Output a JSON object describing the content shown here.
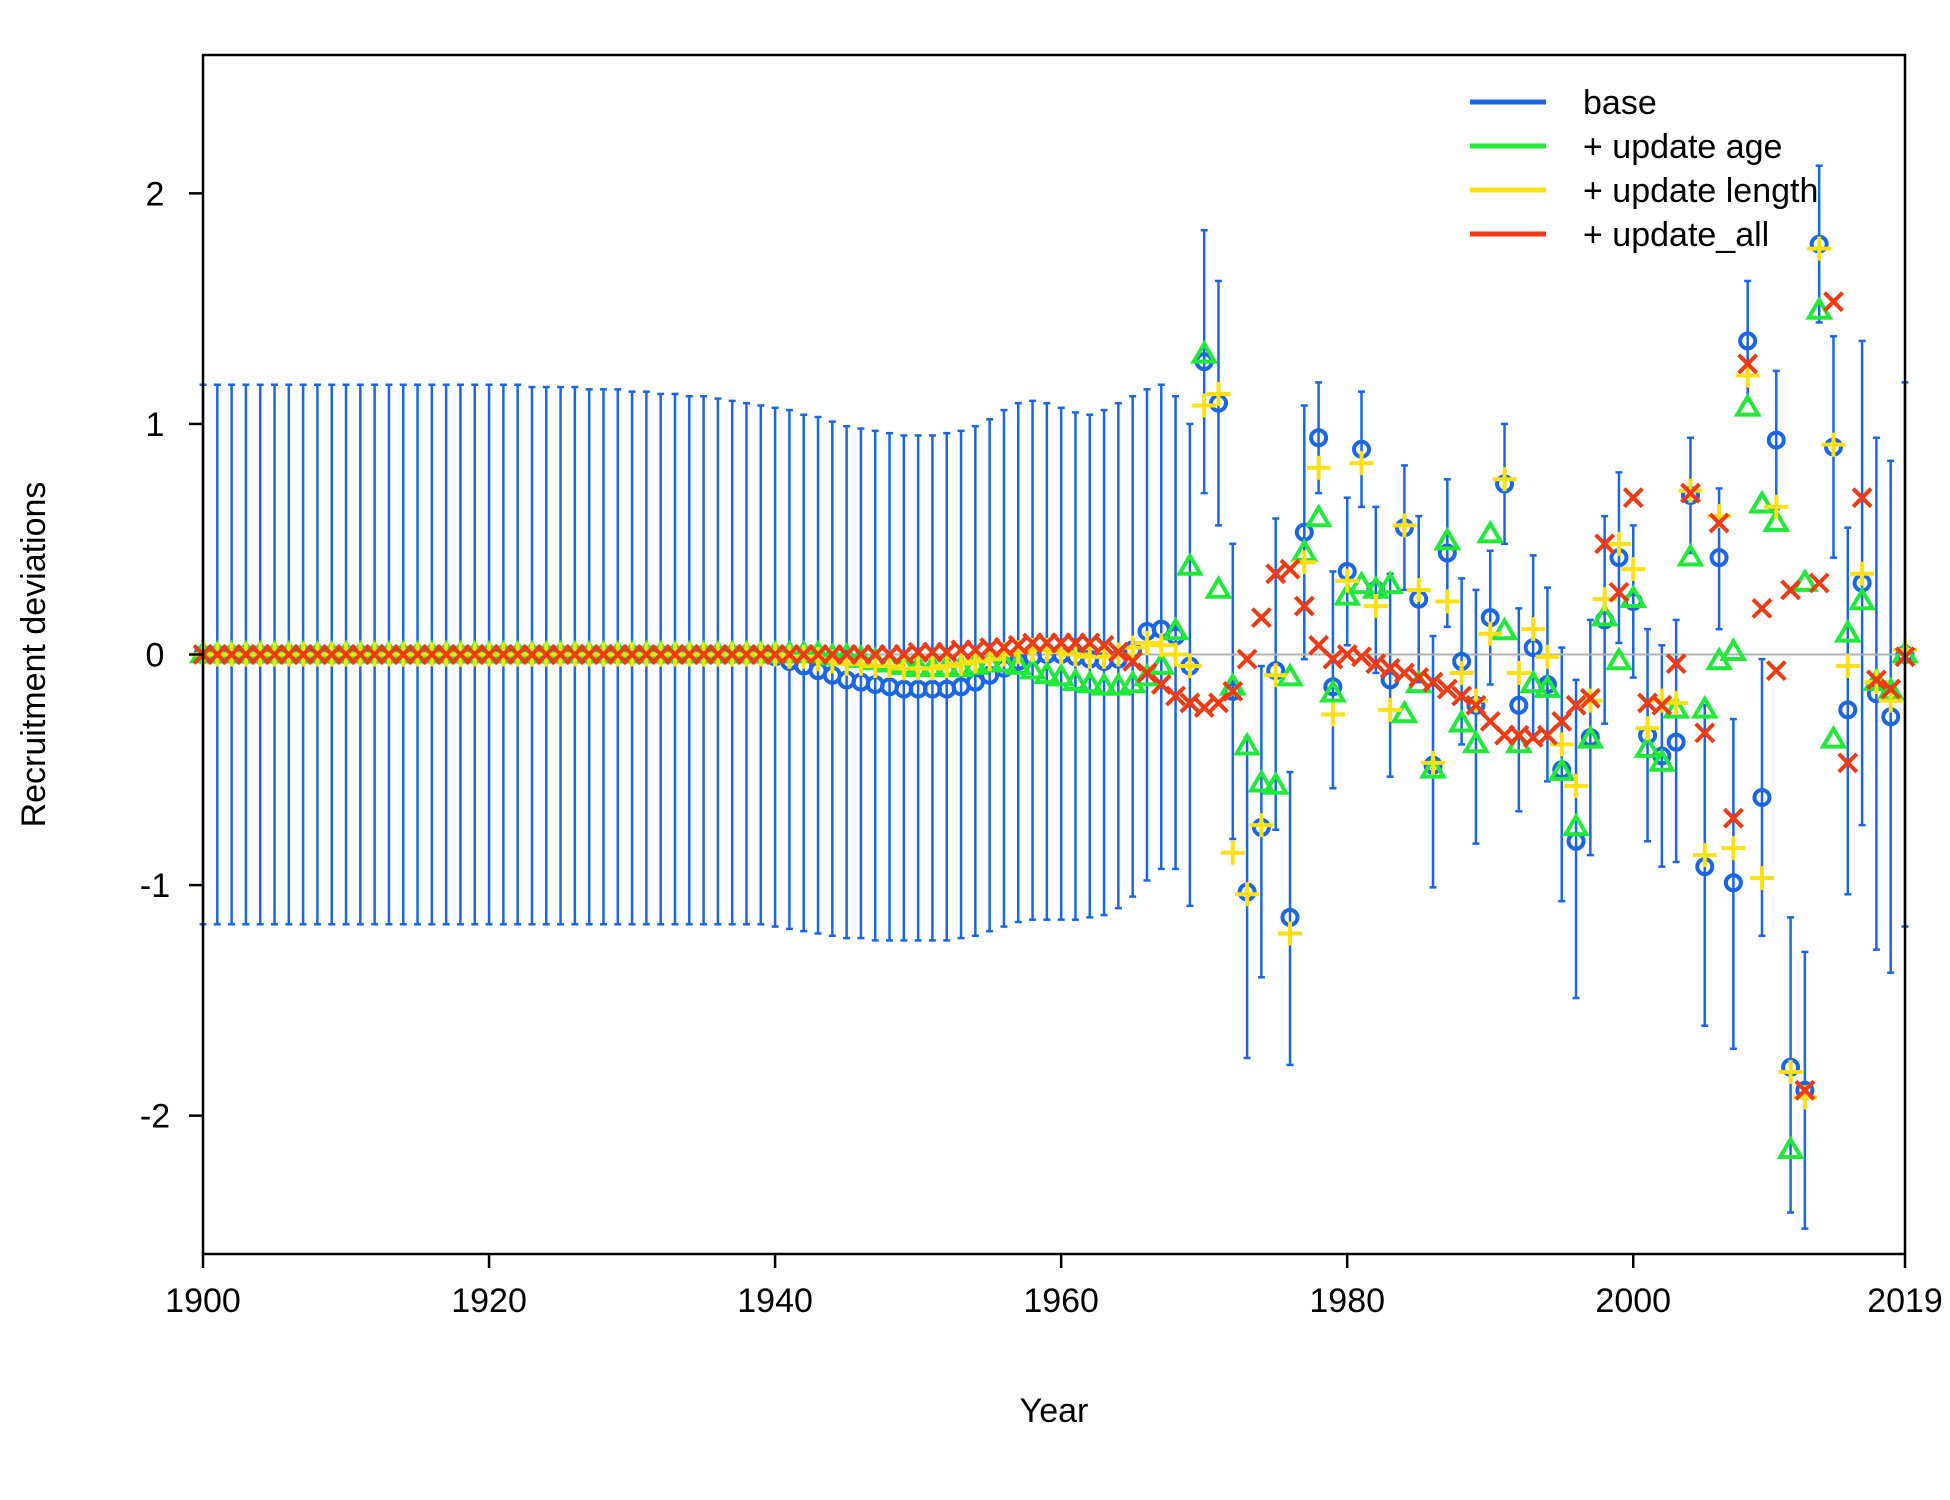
{
  "chart_data": {
    "type": "scatter",
    "title": "",
    "xlabel": "Year",
    "ylabel": "Recruitment deviations",
    "xlim": [
      1900,
      2019
    ],
    "ylim": [
      -2.6,
      2.6
    ],
    "x_ticks": [
      1900,
      1920,
      1940,
      1960,
      1980,
      2000,
      2019
    ],
    "y_ticks": [
      -2,
      -1,
      0,
      1,
      2
    ],
    "reference_line": 0,
    "grid": false,
    "legend": {
      "position": "top-right"
    },
    "early_years": {
      "start": 1900,
      "end": 1969
    },
    "main_years": {
      "start": 1970,
      "end": 2019
    },
    "series": [
      {
        "name": "base",
        "color": "#1a66e6",
        "marker": "circle",
        "early_values": [
          0,
          0,
          0,
          0,
          0,
          0,
          0,
          0,
          0,
          0,
          0,
          0,
          0,
          0,
          0,
          0,
          0,
          0,
          0,
          0,
          0,
          0,
          0,
          0,
          0,
          0,
          0,
          0,
          0,
          0,
          0,
          0,
          0,
          0,
          0,
          0,
          0,
          0,
          0,
          0,
          -0.01,
          -0.03,
          -0.05,
          -0.07,
          -0.09,
          -0.11,
          -0.12,
          -0.13,
          -0.14,
          -0.15,
          -0.15,
          -0.15,
          -0.15,
          -0.14,
          -0.12,
          -0.09,
          -0.06,
          -0.03,
          -0.01,
          0,
          0,
          -0.01,
          -0.02,
          -0.03,
          -0.02,
          0.02,
          0.1,
          0.11,
          0.08,
          -0.05
        ],
        "early_upper": [
          1.17,
          1.17,
          1.17,
          1.17,
          1.17,
          1.17,
          1.17,
          1.17,
          1.17,
          1.17,
          1.17,
          1.17,
          1.17,
          1.17,
          1.17,
          1.17,
          1.17,
          1.17,
          1.17,
          1.17,
          1.17,
          1.17,
          1.17,
          1.16,
          1.16,
          1.16,
          1.16,
          1.15,
          1.15,
          1.15,
          1.14,
          1.14,
          1.13,
          1.13,
          1.12,
          1.12,
          1.11,
          1.1,
          1.09,
          1.08,
          1.07,
          1.06,
          1.04,
          1.03,
          1.01,
          0.99,
          0.98,
          0.97,
          0.96,
          0.95,
          0.95,
          0.95,
          0.96,
          0.97,
          0.99,
          1.02,
          1.06,
          1.09,
          1.1,
          1.09,
          1.07,
          1.05,
          1.04,
          1.06,
          1.09,
          1.12,
          1.15,
          1.17,
          1.12,
          1.0
        ],
        "early_lower": [
          -1.17,
          -1.17,
          -1.17,
          -1.17,
          -1.17,
          -1.17,
          -1.17,
          -1.17,
          -1.17,
          -1.17,
          -1.17,
          -1.17,
          -1.17,
          -1.17,
          -1.17,
          -1.17,
          -1.17,
          -1.17,
          -1.17,
          -1.17,
          -1.17,
          -1.17,
          -1.17,
          -1.17,
          -1.17,
          -1.17,
          -1.17,
          -1.17,
          -1.17,
          -1.17,
          -1.17,
          -1.17,
          -1.17,
          -1.17,
          -1.17,
          -1.17,
          -1.17,
          -1.17,
          -1.17,
          -1.17,
          -1.18,
          -1.19,
          -1.2,
          -1.21,
          -1.22,
          -1.23,
          -1.23,
          -1.24,
          -1.24,
          -1.24,
          -1.24,
          -1.24,
          -1.24,
          -1.23,
          -1.22,
          -1.2,
          -1.18,
          -1.16,
          -1.15,
          -1.15,
          -1.15,
          -1.15,
          -1.14,
          -1.13,
          -1.1,
          -1.05,
          -0.98,
          -0.93,
          -0.93,
          -1.09
        ],
        "values": [
          1.27,
          1.09,
          -0.16,
          -1.03,
          -0.75,
          -0.07,
          -1.14,
          0.53,
          0.94,
          -0.14,
          0.36,
          0.89,
          0.28,
          -0.11,
          0.55,
          0.24,
          -0.48,
          0.44,
          -0.03,
          -0.22,
          0.16,
          0.74,
          -0.22,
          0.03,
          -0.13,
          -0.5,
          -0.81,
          -0.36,
          0.15,
          0.42,
          0.23,
          -0.35,
          -0.44,
          -0.38,
          0.69,
          -0.92,
          0.42,
          -0.99,
          1.36,
          -0.62,
          0.93,
          -1.79,
          -1.89,
          1.78,
          0.9,
          -0.24,
          0.31,
          -0.17,
          -0.27,
          0
        ],
        "upper": [
          1.84,
          1.62,
          0.48,
          -0.36,
          -0.05,
          0.59,
          -0.51,
          1.08,
          1.18,
          0.36,
          0.68,
          1.14,
          0.64,
          0.35,
          0.82,
          0.6,
          0.08,
          0.76,
          0.33,
          0.28,
          0.45,
          1.0,
          0.2,
          0.43,
          0.29,
          0.03,
          -0.11,
          0.15,
          0.6,
          0.79,
          0.56,
          0.11,
          0.04,
          0.15,
          0.94,
          -0.22,
          0.72,
          -0.28,
          1.62,
          -0.02,
          1.23,
          -1.14,
          -1.29,
          2.12,
          1.38,
          0.55,
          1.36,
          0.94,
          0.84,
          1.18
        ],
        "lower": [
          0.7,
          0.56,
          -0.8,
          -1.75,
          -1.4,
          -0.76,
          -1.78,
          -0.02,
          0.7,
          -0.58,
          0.04,
          0.64,
          -0.08,
          -0.53,
          0.28,
          -0.12,
          -1.01,
          0.12,
          -0.39,
          -0.82,
          -0.13,
          0.48,
          -0.68,
          -0.37,
          -0.55,
          -1.07,
          -1.49,
          -0.87,
          -0.3,
          0.05,
          -0.1,
          -0.81,
          -0.92,
          -0.9,
          0.44,
          -1.61,
          0.11,
          -1.71,
          1.1,
          -1.22,
          0.63,
          -2.42,
          -2.49,
          1.44,
          0.42,
          -1.04,
          -0.74,
          -1.28,
          -1.38,
          -1.18
        ]
      },
      {
        "name": "+ update age",
        "color": "#22e83a",
        "marker": "triangle",
        "early_values": [
          0,
          0,
          0,
          0,
          0,
          0,
          0,
          0,
          0,
          0,
          0,
          0,
          0,
          0,
          0,
          0,
          0,
          0,
          0,
          0,
          0,
          0,
          0,
          0,
          0,
          0,
          0,
          0,
          0,
          0,
          0,
          0,
          0,
          0,
          0,
          0,
          0,
          0,
          0,
          0,
          0,
          0,
          0,
          0,
          -0.01,
          -0.01,
          -0.02,
          -0.03,
          -0.04,
          -0.05,
          -0.06,
          -0.06,
          -0.06,
          -0.06,
          -0.05,
          -0.04,
          -0.04,
          -0.05,
          -0.07,
          -0.09,
          -0.1,
          -0.12,
          -0.13,
          -0.14,
          -0.14,
          -0.13,
          -0.1,
          -0.05,
          0.1,
          0.38
        ],
        "values": [
          1.3,
          0.28,
          -0.14,
          -0.4,
          -0.56,
          -0.57,
          -0.1,
          0.44,
          0.59,
          -0.17,
          0.25,
          0.3,
          0.28,
          0.3,
          -0.26,
          -0.13,
          -0.5,
          0.49,
          -0.3,
          -0.39,
          0.52,
          0.1,
          -0.39,
          -0.13,
          -0.15,
          -0.51,
          -0.75,
          -0.37,
          0.16,
          -0.03,
          0.24,
          -0.41,
          -0.47,
          -0.24,
          0.42,
          -0.24,
          -0.03,
          0.01,
          1.07,
          0.65,
          0.57,
          -2.15,
          0.31,
          1.49,
          -0.37,
          0.09,
          0.23,
          -0.12,
          -0.16,
          0
        ],
        "upper": [],
        "lower": []
      },
      {
        "name": " + update length",
        "color": "#ffe014",
        "marker": "plus",
        "early_values": [
          0,
          0,
          0,
          0,
          0,
          0,
          0,
          0,
          0,
          0,
          0,
          0,
          0,
          0,
          0,
          0,
          0,
          0,
          0,
          0,
          0,
          0,
          0,
          0,
          0,
          0,
          0,
          0,
          0,
          0,
          0,
          0,
          0,
          0,
          0,
          0,
          0,
          0,
          0,
          0,
          0,
          -0.01,
          -0.01,
          -0.02,
          -0.03,
          -0.04,
          -0.04,
          -0.05,
          -0.05,
          -0.06,
          -0.06,
          -0.06,
          -0.05,
          -0.04,
          -0.03,
          -0.02,
          0,
          0.01,
          0.02,
          0.02,
          0.01,
          0,
          -0.01,
          -0.01,
          0,
          0.03,
          0.05,
          0.04,
          0,
          -0.05
        ],
        "values": [
          1.08,
          1.13,
          -0.86,
          -1.04,
          -0.74,
          -0.09,
          -1.21,
          0.4,
          0.81,
          -0.26,
          0.32,
          0.83,
          0.21,
          -0.24,
          0.56,
          0.28,
          -0.47,
          0.23,
          -0.08,
          -0.2,
          0.09,
          0.76,
          -0.08,
          0.11,
          -0.01,
          -0.39,
          -0.57,
          -0.2,
          0.24,
          0.48,
          0.37,
          -0.32,
          -0.2,
          -0.21,
          0.71,
          -0.87,
          0.6,
          -0.84,
          1.21,
          -0.97,
          0.64,
          -1.81,
          -1.92,
          1.76,
          0.91,
          -0.05,
          0.35,
          -0.12,
          -0.2,
          0.02
        ],
        "upper": [],
        "lower": []
      },
      {
        "name": " + update_all",
        "color": "#f03a14",
        "marker": "x",
        "early_values": [
          0,
          0,
          0,
          0,
          0,
          0,
          0,
          0,
          0,
          0,
          0,
          0,
          0,
          0,
          0,
          0,
          0,
          0,
          0,
          0,
          0,
          0,
          0,
          0,
          0,
          0,
          0,
          0,
          0,
          0,
          0,
          0,
          0,
          0,
          0,
          0,
          0,
          0,
          0,
          0,
          0,
          0,
          0,
          0,
          0,
          0,
          0,
          0,
          0,
          0,
          0.01,
          0.01,
          0.01,
          0.02,
          0.02,
          0.03,
          0.03,
          0.04,
          0.05,
          0.05,
          0.05,
          0.05,
          0.05,
          0.04,
          0.01,
          -0.03,
          -0.08,
          -0.13,
          -0.18,
          -0.21
        ],
        "values": [
          -0.23,
          -0.21,
          -0.16,
          -0.02,
          0.16,
          0.35,
          0.37,
          0.21,
          0.04,
          -0.02,
          0,
          -0.01,
          -0.04,
          -0.06,
          -0.08,
          -0.1,
          -0.12,
          -0.15,
          -0.18,
          -0.22,
          -0.29,
          -0.35,
          -0.35,
          -0.36,
          -0.35,
          -0.29,
          -0.22,
          -0.19,
          0.48,
          0.27,
          0.68,
          -0.21,
          -0.22,
          -0.04,
          0.7,
          -0.34,
          0.57,
          -0.71,
          1.26,
          0.2,
          -0.07,
          0.28,
          -1.89,
          0.31,
          1.53,
          -0.47,
          0.68,
          -0.11,
          -0.15,
          -0.01
        ],
        "upper": [],
        "lower": []
      }
    ]
  }
}
